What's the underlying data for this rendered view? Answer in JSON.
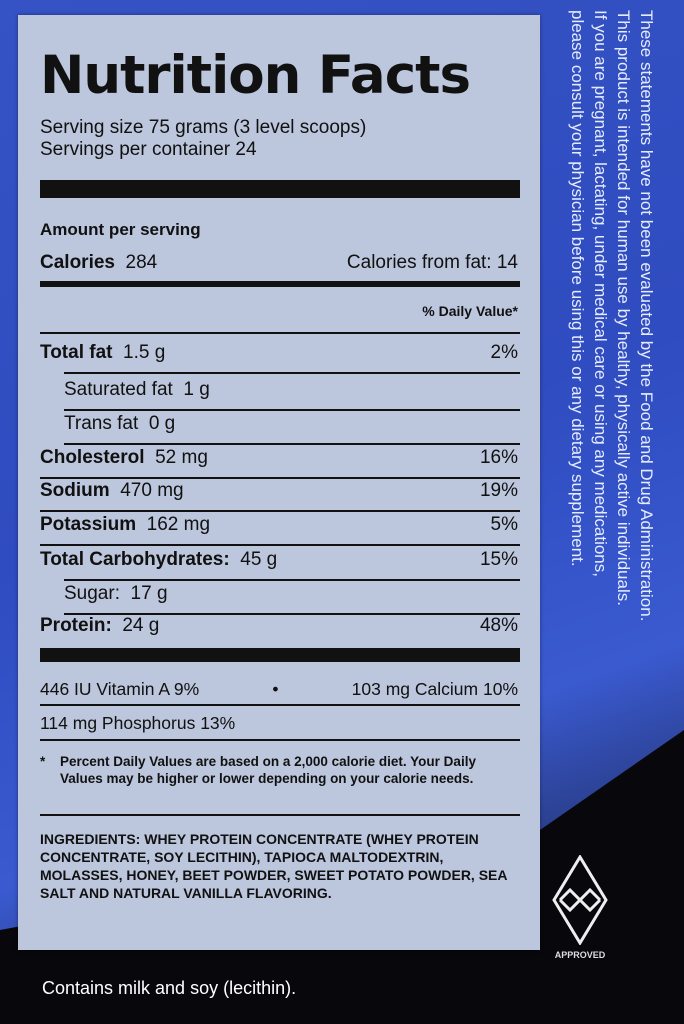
{
  "label": {
    "title": "Nutrition Facts",
    "serving_size": "Serving size 75 grams (3 level scoops)",
    "servings_per_container": "Servings per container  24",
    "amount_per_serving": "Amount per serving",
    "calories_label": "Calories",
    "calories_value": "284",
    "calories_from_fat": "Calories from fat: 14",
    "daily_value_header": "% Daily Value*",
    "nutrients": [
      {
        "name": "Total fat",
        "amount": "1.5 g",
        "dv": "2%",
        "bold": true,
        "indent": false
      },
      {
        "name": "Saturated fat",
        "amount": "1 g",
        "dv": "",
        "bold": false,
        "indent": true
      },
      {
        "name": "Trans fat",
        "amount": "0 g",
        "dv": "",
        "bold": false,
        "indent": true
      },
      {
        "name": "Cholesterol",
        "amount": "52 mg",
        "dv": "16%",
        "bold": true,
        "indent": false
      },
      {
        "name": "Sodium",
        "amount": "470 mg",
        "dv": "19%",
        "bold": true,
        "indent": false
      },
      {
        "name": "Potassium",
        "amount": "162 mg",
        "dv": "5%",
        "bold": true,
        "indent": false
      },
      {
        "name": "Total Carbohydrates:",
        "amount": "45 g",
        "dv": "15%",
        "bold": true,
        "indent": false
      },
      {
        "name": "Sugar:",
        "amount": "17 g",
        "dv": "",
        "bold": false,
        "indent": true
      },
      {
        "name": "Protein:",
        "amount": "24 g",
        "dv": "48%",
        "bold": true,
        "indent": false
      }
    ],
    "vitamin_a": "446 IU Vitamin A 9%",
    "bullet": "•",
    "calcium": "103 mg Calcium 10%",
    "phosphorus": "114 mg Phosphorus 13%",
    "footnote_star": "*",
    "footnote": "Percent Daily Values are based on a 2,000 calorie diet. Your Daily Values may be higher or lower depending on your calorie needs.",
    "ingredients_label": "INGREDIENTS:",
    "ingredients": "WHEY PROTEIN CONCENTRATE (WHEY PROTEIN CONCENTRATE, SOY LECITHIN), TAPIOCA MALTODEXTRIN, MOLASSES, HONEY, BEET POWDER, SWEET POTATO POWDER, SEA SALT AND NATURAL VANILLA FLAVORING."
  },
  "disclaimer": [
    "These statements have not been evaluated by the Food and Drug Administration.",
    "This product is intended for human use by healthy, physically active individuals.",
    "If you are pregnant, lactating, under medical care or using any medications,",
    "please consult your physician before using this or any dietary supplement."
  ],
  "badge": {
    "icon": "diamond-logo-icon",
    "text": "APPROVED"
  },
  "allergen": "Contains milk and soy (lecithin).",
  "colors": {
    "background_blue": "#3553c4",
    "label": "#bcc6dc",
    "dark": "#08080c"
  }
}
